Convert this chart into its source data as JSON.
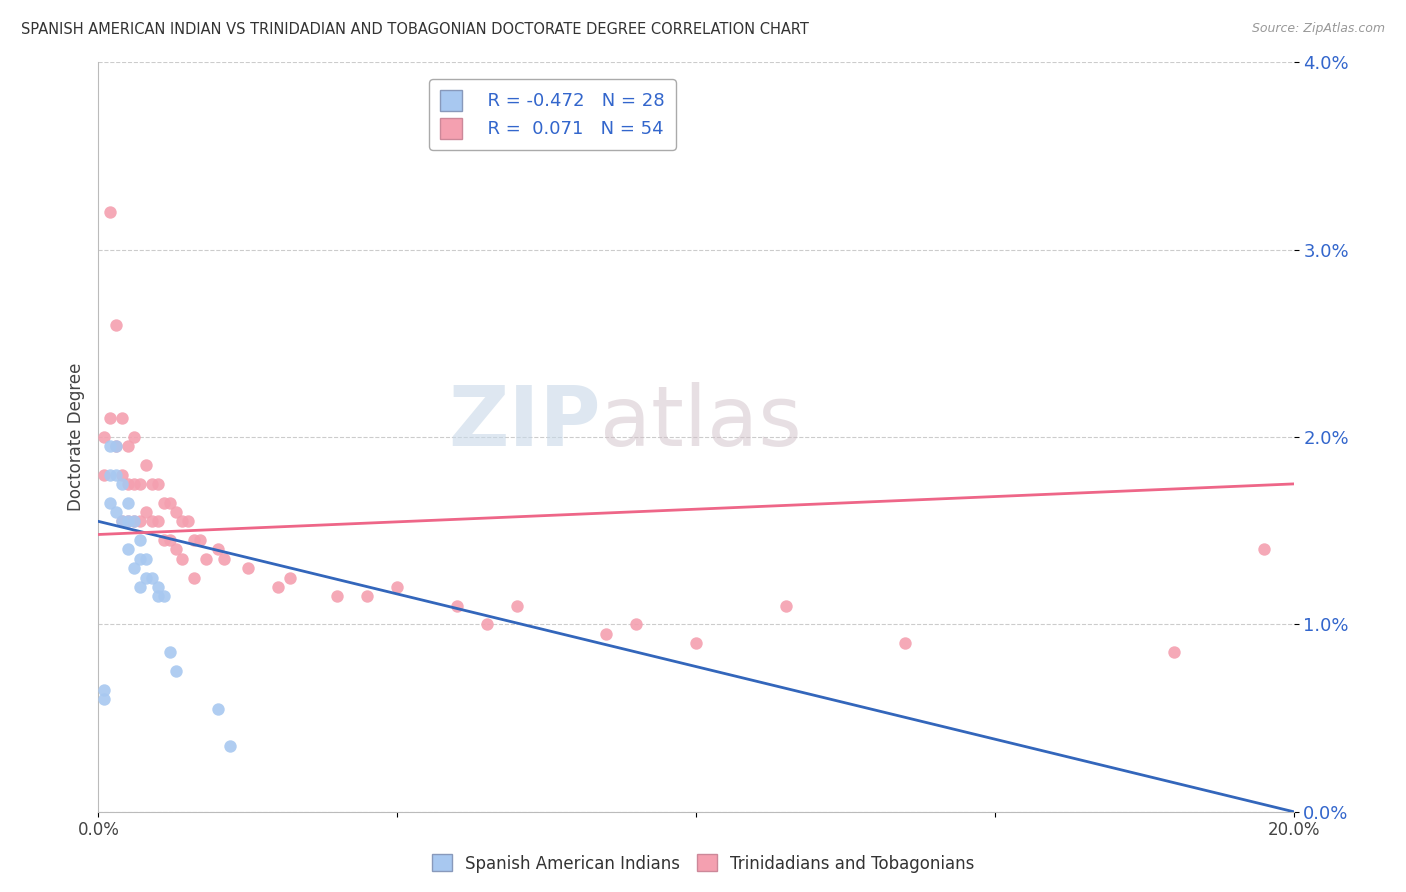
{
  "title": "SPANISH AMERICAN INDIAN VS TRINIDADIAN AND TOBAGONIAN DOCTORATE DEGREE CORRELATION CHART",
  "source": "Source: ZipAtlas.com",
  "ylabel": "Doctorate Degree",
  "yticks": [
    "0.0%",
    "1.0%",
    "2.0%",
    "3.0%",
    "4.0%"
  ],
  "ytick_vals": [
    0.0,
    0.01,
    0.02,
    0.03,
    0.04
  ],
  "xlim": [
    0.0,
    0.2
  ],
  "ylim": [
    0.0,
    0.04
  ],
  "blue_color": "#a8c8f0",
  "pink_color": "#f4a0b0",
  "blue_line_color": "#3366bb",
  "pink_line_color": "#ee6688",
  "watermark_zip": "ZIP",
  "watermark_atlas": "atlas",
  "blue_scatter_x": [
    0.001,
    0.001,
    0.002,
    0.002,
    0.002,
    0.003,
    0.003,
    0.003,
    0.004,
    0.004,
    0.005,
    0.005,
    0.005,
    0.006,
    0.006,
    0.007,
    0.007,
    0.007,
    0.008,
    0.008,
    0.009,
    0.01,
    0.01,
    0.011,
    0.012,
    0.013,
    0.02,
    0.022
  ],
  "blue_scatter_y": [
    0.0065,
    0.006,
    0.0195,
    0.018,
    0.0165,
    0.0195,
    0.018,
    0.016,
    0.0175,
    0.0155,
    0.0165,
    0.0155,
    0.014,
    0.0155,
    0.013,
    0.0145,
    0.0135,
    0.012,
    0.0135,
    0.0125,
    0.0125,
    0.012,
    0.0115,
    0.0115,
    0.0085,
    0.0075,
    0.0055,
    0.0035
  ],
  "pink_scatter_x": [
    0.001,
    0.001,
    0.002,
    0.002,
    0.003,
    0.003,
    0.004,
    0.004,
    0.004,
    0.005,
    0.005,
    0.005,
    0.006,
    0.006,
    0.006,
    0.007,
    0.007,
    0.008,
    0.008,
    0.009,
    0.009,
    0.01,
    0.01,
    0.011,
    0.011,
    0.012,
    0.012,
    0.013,
    0.013,
    0.014,
    0.014,
    0.015,
    0.016,
    0.016,
    0.017,
    0.018,
    0.02,
    0.021,
    0.025,
    0.03,
    0.032,
    0.04,
    0.045,
    0.05,
    0.06,
    0.065,
    0.07,
    0.085,
    0.09,
    0.1,
    0.115,
    0.135,
    0.18,
    0.195
  ],
  "pink_scatter_y": [
    0.02,
    0.018,
    0.032,
    0.021,
    0.026,
    0.0195,
    0.021,
    0.018,
    0.0155,
    0.0195,
    0.0175,
    0.0155,
    0.02,
    0.0175,
    0.0155,
    0.0175,
    0.0155,
    0.0185,
    0.016,
    0.0175,
    0.0155,
    0.0175,
    0.0155,
    0.0165,
    0.0145,
    0.0165,
    0.0145,
    0.016,
    0.014,
    0.0155,
    0.0135,
    0.0155,
    0.0145,
    0.0125,
    0.0145,
    0.0135,
    0.014,
    0.0135,
    0.013,
    0.012,
    0.0125,
    0.0115,
    0.0115,
    0.012,
    0.011,
    0.01,
    0.011,
    0.0095,
    0.01,
    0.009,
    0.011,
    0.009,
    0.0085,
    0.014
  ],
  "blue_trendline_x": [
    0.0,
    0.2
  ],
  "blue_trendline_y": [
    0.0155,
    0.0
  ],
  "pink_trendline_x": [
    0.0,
    0.2
  ],
  "pink_trendline_y": [
    0.0148,
    0.0175
  ]
}
